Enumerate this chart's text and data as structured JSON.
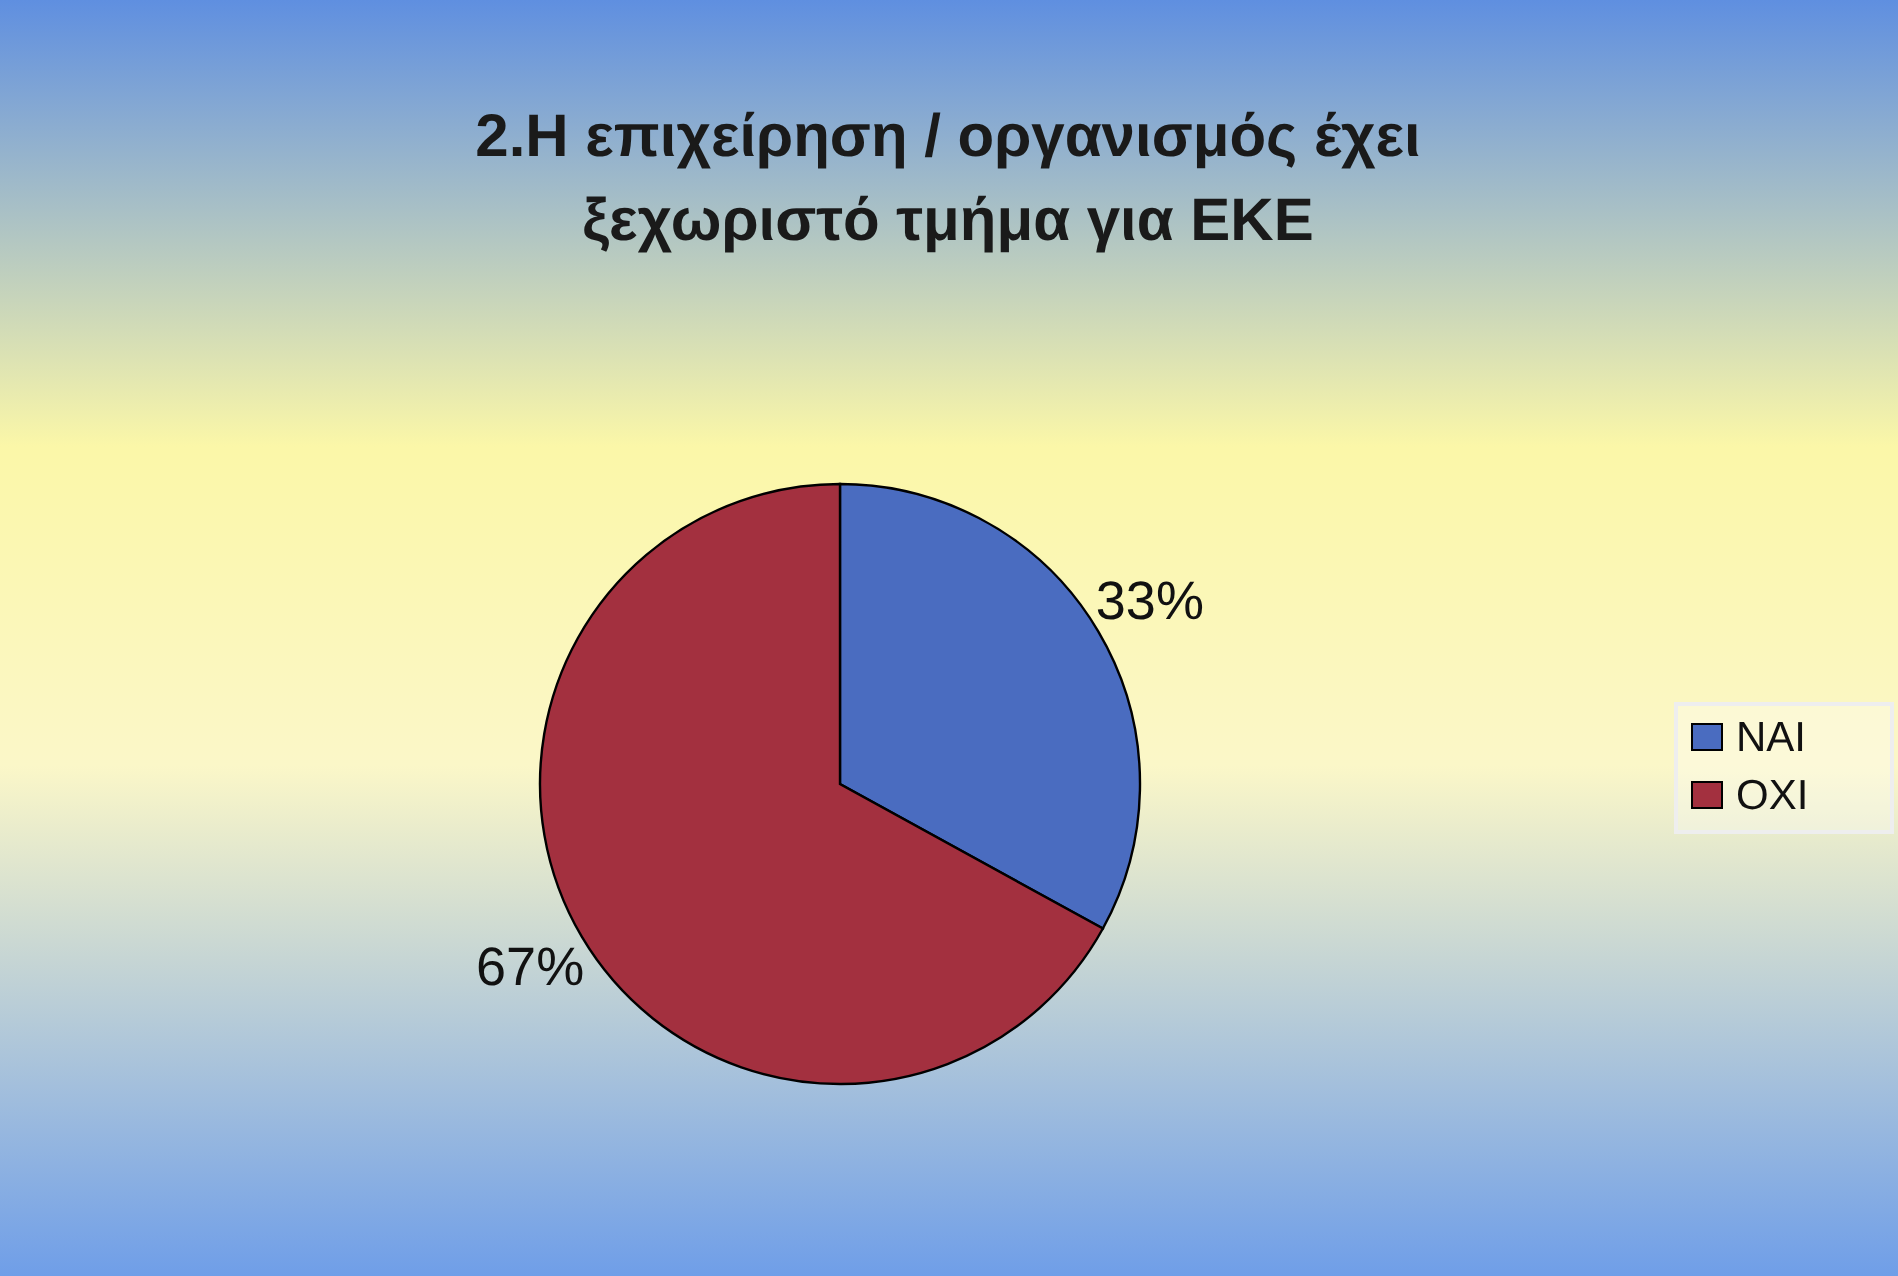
{
  "chart_data": {
    "type": "pie",
    "title": "2.Η επιχείρηση / οργανισμός έχει ξεχωριστό τμήμα για ΕΚΕ",
    "categories": [
      "ΝΑΙ",
      "ΟΧΙ"
    ],
    "values": [
      33,
      67
    ],
    "colors": [
      "#4a6cc0",
      "#a3303f"
    ],
    "value_labels": [
      "33%",
      "67%"
    ],
    "legend": "right"
  }
}
